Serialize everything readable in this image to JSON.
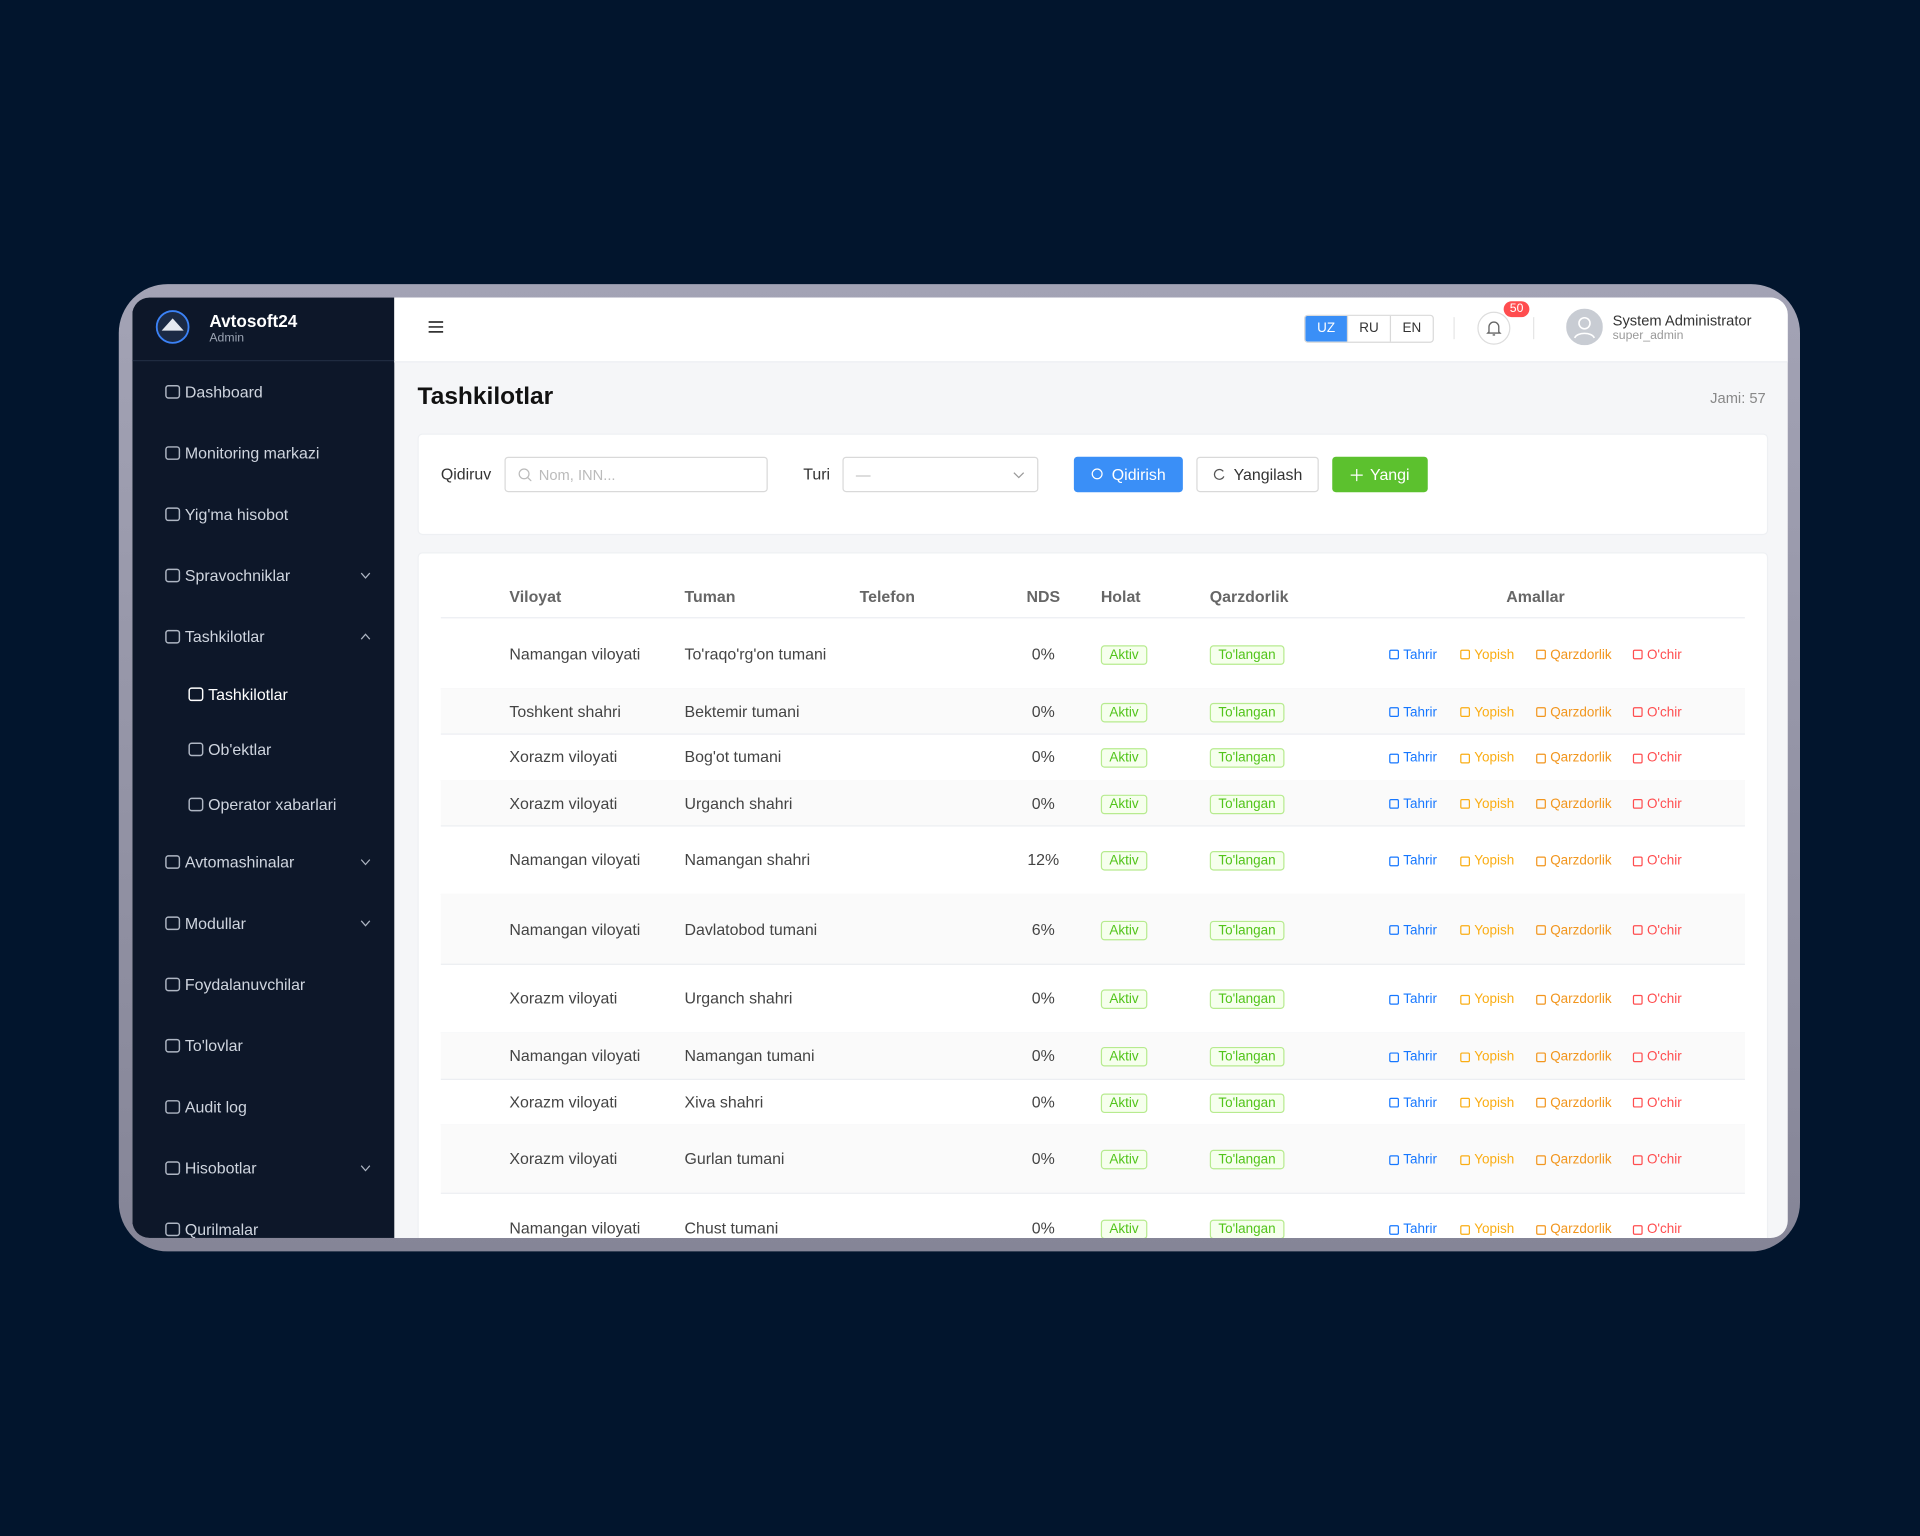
{
  "sidebar": {
    "brand": "Avtosoft24",
    "role": "Admin",
    "menu": [
      {
        "label": "Dashboard"
      },
      {
        "label": "Monitoring markazi"
      },
      {
        "label": "Yig'ma hisobot"
      },
      {
        "label": "Spravochniklar"
      },
      {
        "label": "Tashkilotlar"
      },
      {
        "label": "Tashkilotlar"
      },
      {
        "label": "Ob'ektlar"
      },
      {
        "label": "Operator xabarlari"
      },
      {
        "label": "Avtomashinalar"
      },
      {
        "label": "Modullar"
      },
      {
        "label": "Foydalanuvchilar"
      },
      {
        "label": "To'lovlar"
      },
      {
        "label": "Audit log"
      },
      {
        "label": "Hisobotlar"
      },
      {
        "label": "Qurilmalar"
      }
    ]
  },
  "header": {
    "languages": [
      "UZ",
      "RU",
      "EN"
    ],
    "notifications": "50",
    "user_name": "System Administrator",
    "user_login": "super_admin"
  },
  "page": {
    "title": "Tashkilotlar",
    "total": "Jami: 57"
  },
  "filters": {
    "search_label": "Qidiruv",
    "search_placeholder": "Nom, INN...",
    "type_label": "Turi",
    "type_value": "—",
    "search_button": "Qidirish",
    "reset_button": "Yangilash",
    "new_button": "Yangi"
  },
  "table": {
    "columns": [
      "Viloyat",
      "Tuman",
      "Telefon",
      "NDS",
      "Holat",
      "Qarzdorlik",
      "Amallar"
    ],
    "actions": [
      "Tahrir",
      "Yopish",
      "Qarzdorlik",
      "O'chir"
    ],
    "rows": [
      [
        "Namangan viloyati",
        "To'raqo'rg'on tumani",
        "0%",
        "Aktiv",
        "To'langan"
      ],
      [
        "Toshkent shahri",
        "Bektemir tumani",
        "0%",
        "Aktiv",
        "To'langan"
      ],
      [
        "Xorazm viloyati",
        "Bog'ot tumani",
        "0%",
        "Aktiv",
        "To'langan"
      ],
      [
        "Xorazm viloyati",
        "Urganch shahri",
        "0%",
        "Aktiv",
        "To'langan"
      ],
      [
        "Namangan viloyati",
        "Namangan shahri",
        "12%",
        "Aktiv",
        "To'langan"
      ],
      [
        "Namangan viloyati",
        "Davlatobod tumani",
        "6%",
        "Aktiv",
        "To'langan"
      ],
      [
        "Xorazm viloyati",
        "Urganch shahri",
        "0%",
        "Aktiv",
        "To'langan"
      ],
      [
        "Namangan viloyati",
        "Namangan tumani",
        "0%",
        "Aktiv",
        "To'langan"
      ],
      [
        "Xorazm viloyati",
        "Xiva shahri",
        "0%",
        "Aktiv",
        "To'langan"
      ],
      [
        "Xorazm viloyati",
        "Gurlan tumani",
        "0%",
        "Aktiv",
        "To'langan"
      ],
      [
        "Namangan viloyati",
        "Chust tumani",
        "0%",
        "Aktiv",
        "To'langan"
      ]
    ]
  }
}
